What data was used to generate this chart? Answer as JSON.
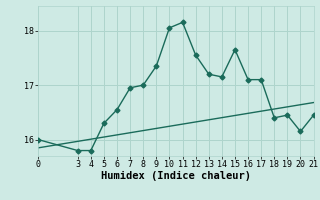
{
  "xlabel": "Humidex (Indice chaleur)",
  "ylabel": "",
  "bg_color": "#ceeae4",
  "grid_color": "#aed4cc",
  "line_color": "#1a6b5a",
  "xlim": [
    0,
    21
  ],
  "ylim": [
    15.7,
    18.45
  ],
  "yticks": [
    16,
    17,
    18
  ],
  "xticks": [
    0,
    3,
    4,
    5,
    6,
    7,
    8,
    9,
    10,
    11,
    12,
    13,
    14,
    15,
    16,
    17,
    18,
    19,
    20,
    21
  ],
  "series1_x": [
    0,
    3,
    4,
    5,
    6,
    7,
    8,
    9,
    10,
    11,
    12,
    13,
    14,
    15,
    16,
    17,
    18,
    19,
    20,
    21
  ],
  "series1_y": [
    16.0,
    15.8,
    15.8,
    16.3,
    16.55,
    16.95,
    17.0,
    17.35,
    18.05,
    18.15,
    17.55,
    17.2,
    17.15,
    17.65,
    17.1,
    17.1,
    16.4,
    16.45,
    16.15,
    16.45
  ],
  "series2_x": [
    0,
    21
  ],
  "series2_y": [
    15.85,
    16.68
  ],
  "marker": "D",
  "markersize": 2.5,
  "linewidth": 1.0,
  "tick_fontsize": 6,
  "label_fontsize": 7.5
}
